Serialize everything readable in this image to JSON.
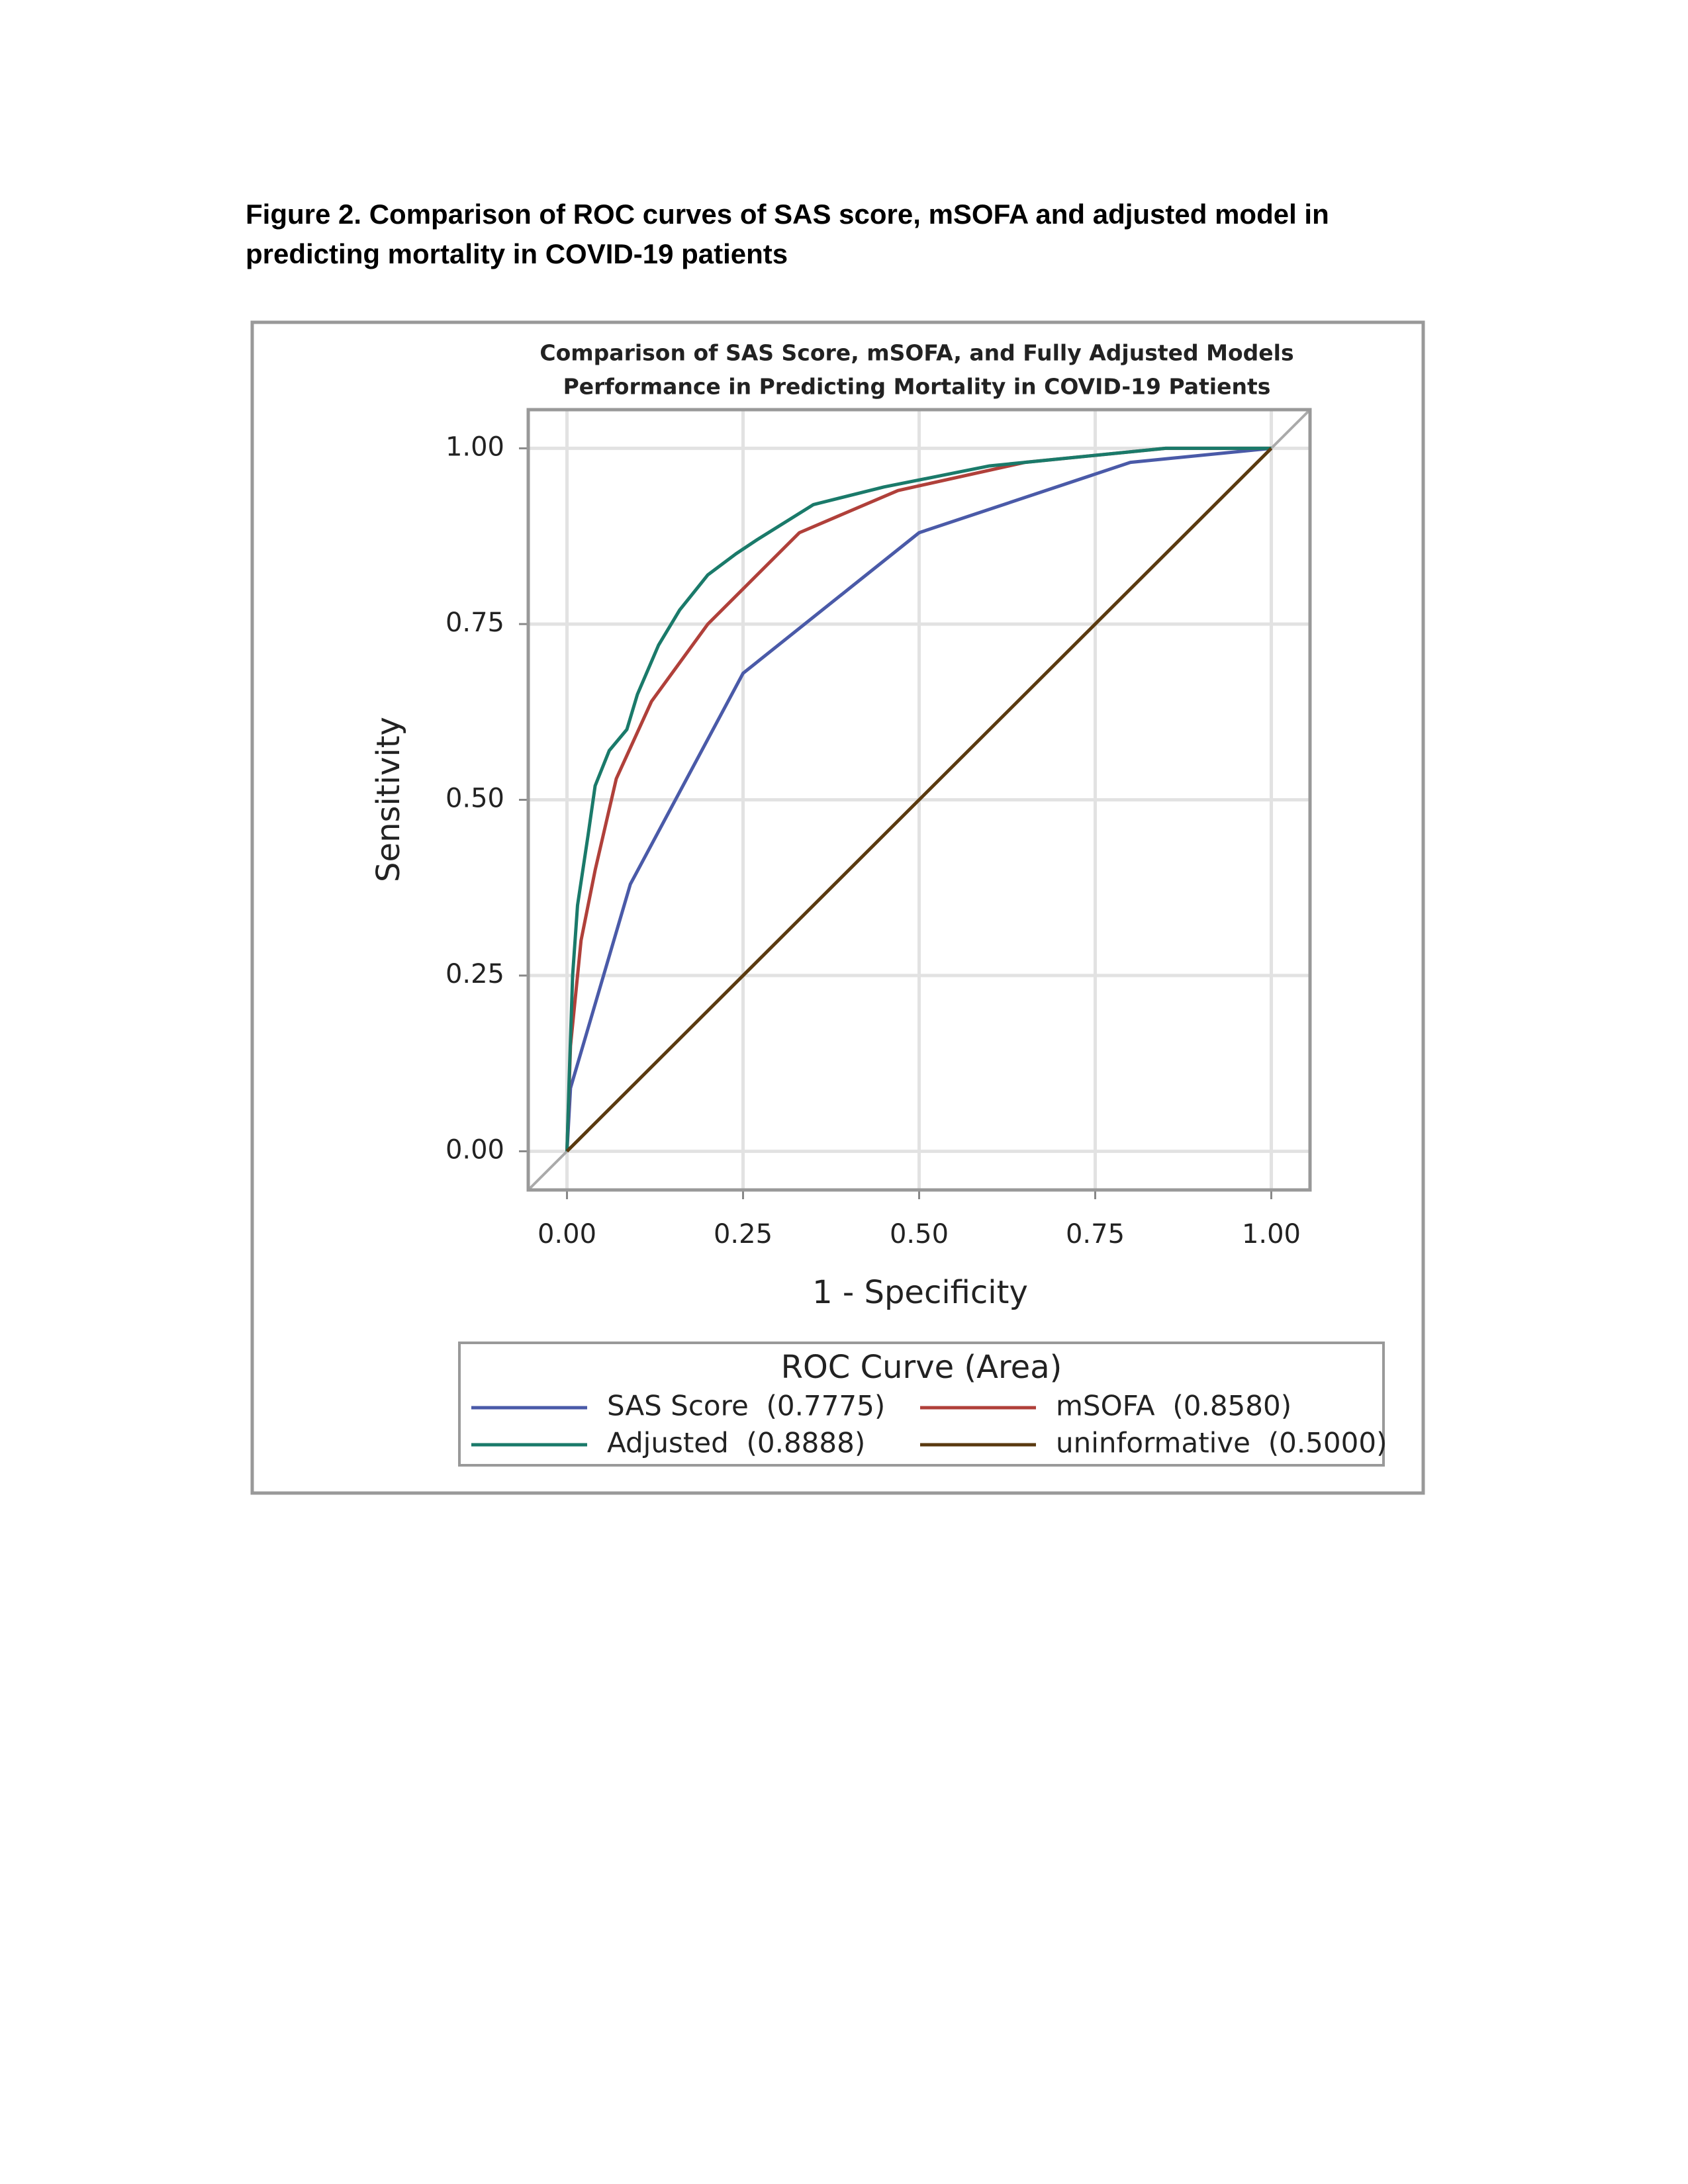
{
  "caption": [
    "Figure 2. Comparison of ROC curves of SAS score, mSOFA and adjusted model in",
    "predicting mortality in COVID-19 patients"
  ],
  "chart_data": {
    "type": "line",
    "title": [
      "Comparison of SAS Score, mSOFA, and Fully Adjusted Models",
      "Performance in Predicting Mortality in COVID-19 Patients"
    ],
    "x_label": "1 - Specificity",
    "y_label": "Sensitivity",
    "xlim": [
      -0.055,
      1.055
    ],
    "ylim": [
      -0.055,
      1.055
    ],
    "xticks": [
      {
        "value": 0,
        "label": "0.00"
      },
      {
        "value": 0.25,
        "label": "0.25"
      },
      {
        "value": 0.5,
        "label": "0.50"
      },
      {
        "value": 0.75,
        "label": "0.75"
      },
      {
        "value": 1,
        "label": "1.00"
      }
    ],
    "yticks": [
      {
        "value": 0,
        "label": "0.00"
      },
      {
        "value": 0.25,
        "label": "0.25"
      },
      {
        "value": 0.5,
        "label": "0.50"
      },
      {
        "value": 0.75,
        "label": "0.75"
      },
      {
        "value": 1,
        "label": "1.00"
      }
    ],
    "grid": true,
    "legend_title": "ROC Curve (Area)",
    "series": [
      {
        "name": "SAS Score  (0.7775)",
        "color": "#4a5aa8",
        "x": [
          0,
          0.005,
          0.09,
          0.25,
          0.5,
          0.8,
          1
        ],
        "values": [
          0,
          0.09,
          0.38,
          0.68,
          0.88,
          0.98,
          1
        ]
      },
      {
        "name": "mSOFA  (0.8580)",
        "color": "#b0403a",
        "x": [
          0,
          0.005,
          0.02,
          0.04,
          0.07,
          0.12,
          0.2,
          0.25,
          0.33,
          0.47,
          0.65,
          0.85,
          1
        ],
        "values": [
          0,
          0.15,
          0.3,
          0.4,
          0.53,
          0.64,
          0.75,
          0.8,
          0.88,
          0.94,
          0.98,
          1,
          1
        ]
      },
      {
        "name": "Adjusted  (0.8888)",
        "color": "#1a7a6a",
        "x": [
          0,
          0.003,
          0.008,
          0.015,
          0.03,
          0.04,
          0.06,
          0.085,
          0.1,
          0.13,
          0.16,
          0.2,
          0.24,
          0.27,
          0.35,
          0.45,
          0.55,
          0.6,
          0.75,
          0.85,
          1
        ],
        "values": [
          0,
          0.1,
          0.25,
          0.35,
          0.45,
          0.52,
          0.57,
          0.6,
          0.65,
          0.72,
          0.77,
          0.82,
          0.85,
          0.87,
          0.92,
          0.945,
          0.965,
          0.975,
          0.99,
          1,
          1
        ]
      },
      {
        "name": "uninformative  (0.5000)",
        "color": "#5a3a10",
        "x": [
          0,
          1
        ],
        "values": [
          0,
          1
        ]
      }
    ]
  }
}
